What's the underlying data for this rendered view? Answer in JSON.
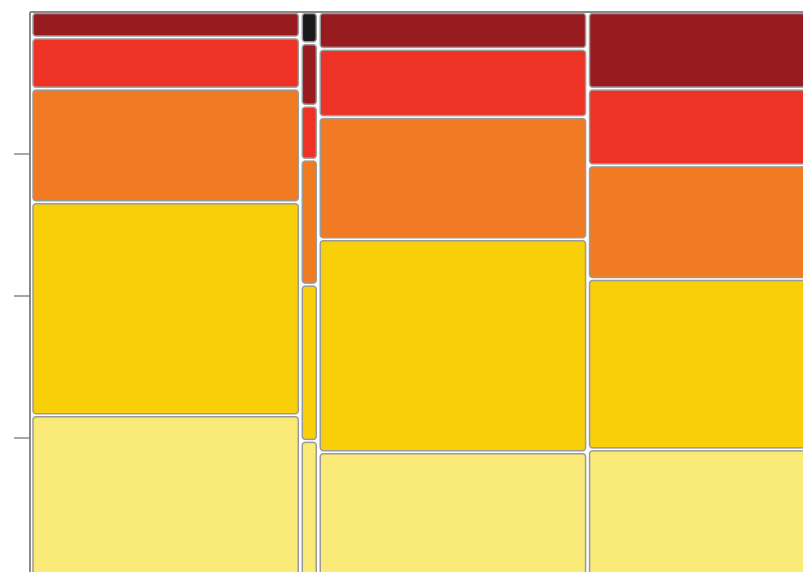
{
  "chart_data": {
    "type": "mosaic",
    "widths": [
      0.3,
      0.02,
      0.3,
      0.38
    ],
    "xlim": [
      0,
      0.86
    ],
    "ylim": [
      0,
      1
    ],
    "yticks": [
      0.25,
      0.5,
      0.75
    ],
    "series": [
      {
        "color": "#faeb78",
        "values": [
          0.29,
          0.245,
          0.225,
          0.23
        ]
      },
      {
        "color": "#f9cf0a",
        "values": [
          0.375,
          0.275,
          0.375,
          0.3
        ]
      },
      {
        "color": "#f07b22",
        "values": [
          0.2,
          0.22,
          0.215,
          0.2
        ]
      },
      {
        "color": "#ee3226",
        "values": [
          0.09,
          0.095,
          0.12,
          0.135
        ]
      },
      {
        "color": "#981b1f",
        "values": [
          0.045,
          0.11,
          0.065,
          0.135
        ]
      },
      {
        "color": "#1a1a1a",
        "values": [
          0,
          0.055,
          0,
          0
        ]
      }
    ]
  }
}
